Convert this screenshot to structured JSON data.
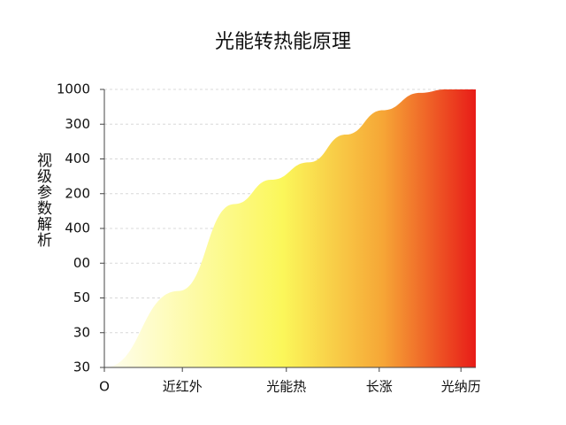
{
  "chart_data": {
    "type": "area",
    "title": "光能转热能原理",
    "ylabel": "视级参数解析",
    "x": [
      0,
      20,
      35,
      45,
      55,
      65,
      75,
      85,
      92,
      100
    ],
    "values": [
      0,
      2.2,
      4.7,
      5.4,
      5.9,
      6.7,
      7.4,
      7.9,
      8,
      8
    ],
    "xlim": [
      0,
      100
    ],
    "xticks": [
      {
        "value": 0,
        "label": "O"
      },
      {
        "value": 21,
        "label": "近红外"
      },
      {
        "value": 49,
        "label": "光能热"
      },
      {
        "value": 74,
        "label": "长涨"
      },
      {
        "value": 96,
        "label": "光纳历"
      }
    ],
    "ylim": [
      0,
      8
    ],
    "yticks": [
      {
        "value": 0,
        "label": "30"
      },
      {
        "value": 1,
        "label": "30"
      },
      {
        "value": 2,
        "label": "50"
      },
      {
        "value": 3,
        "label": "00"
      },
      {
        "value": 4,
        "label": "400"
      },
      {
        "value": 5,
        "label": "200"
      },
      {
        "value": 6,
        "label": "400"
      },
      {
        "value": 7,
        "label": "300"
      },
      {
        "value": 8,
        "label": "1000"
      }
    ],
    "grid": true,
    "gradient": [
      "#fffef2",
      "#fbf75a",
      "#f6a636",
      "#e81c18"
    ]
  }
}
